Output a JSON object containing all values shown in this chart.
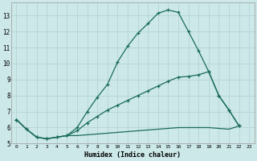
{
  "xlabel": "Humidex (Indice chaleur)",
  "bg_color": "#cce8e8",
  "grid_color": "#b0d0d0",
  "line_color": "#1a6b5a",
  "xlim": [
    -0.5,
    23.5
  ],
  "ylim": [
    5,
    13.8
  ],
  "yticks": [
    5,
    6,
    7,
    8,
    9,
    10,
    11,
    12,
    13
  ],
  "xticks": [
    0,
    1,
    2,
    3,
    4,
    5,
    6,
    7,
    8,
    9,
    10,
    11,
    12,
    13,
    14,
    15,
    16,
    17,
    18,
    19,
    20,
    21,
    22,
    23
  ],
  "line1_x": [
    0,
    1,
    2,
    3,
    4,
    5,
    6,
    7,
    8,
    9,
    10,
    11,
    12,
    13,
    14,
    15,
    16,
    17,
    18,
    19,
    20,
    21,
    22
  ],
  "line1_y": [
    6.5,
    5.9,
    5.4,
    5.3,
    5.4,
    5.5,
    6.0,
    7.0,
    7.9,
    8.7,
    10.1,
    11.1,
    11.9,
    12.5,
    13.15,
    13.35,
    13.2,
    12.0,
    10.8,
    9.5,
    8.0,
    7.1,
    6.1
  ],
  "line2_x": [
    0,
    1,
    2,
    3,
    4,
    5,
    6,
    7,
    8,
    9,
    10,
    11,
    12,
    13,
    14,
    15,
    16,
    17,
    18,
    19,
    20,
    21,
    22
  ],
  "line2_y": [
    6.5,
    5.9,
    5.4,
    5.3,
    5.4,
    5.5,
    5.8,
    6.3,
    6.7,
    7.1,
    7.4,
    7.7,
    8.0,
    8.3,
    8.6,
    8.9,
    9.15,
    9.2,
    9.3,
    9.5,
    8.0,
    7.1,
    6.1
  ],
  "line3_x": [
    0,
    1,
    2,
    3,
    4,
    5,
    6,
    7,
    8,
    9,
    10,
    11,
    12,
    13,
    14,
    15,
    16,
    17,
    18,
    19,
    20,
    21,
    22
  ],
  "line3_y": [
    6.5,
    5.9,
    5.4,
    5.3,
    5.4,
    5.5,
    5.5,
    5.55,
    5.6,
    5.65,
    5.7,
    5.75,
    5.8,
    5.85,
    5.9,
    5.95,
    6.0,
    6.0,
    6.0,
    6.0,
    5.95,
    5.9,
    6.1
  ]
}
